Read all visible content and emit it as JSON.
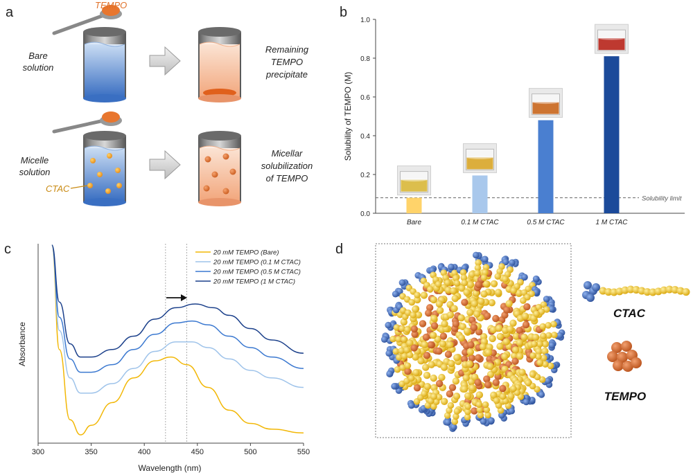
{
  "panel_letters": {
    "a": "a",
    "b": "b",
    "c": "c",
    "d": "d"
  },
  "panel_a": {
    "tempo_label": "TEMPO",
    "bare_label": "Bare\nsolution",
    "micelle_label": "Micelle\nsolution",
    "ctac_label": "CTAC",
    "result_top": "Remaining\nTEMPO\nprecipitate",
    "result_bottom": "Micellar\nsolubilization\nof TEMPO"
  },
  "panel_d": {
    "ctac_label": "CTAC",
    "tempo_label": "TEMPO"
  },
  "colors": {
    "bare_bar": "#ffd36a",
    "bar_01": "#a9c8ec",
    "bar_05": "#4a7fd0",
    "bar_1": "#1b4a9a",
    "tempo_orange": "#e0742c",
    "ctac_yellow": "#f2c21a",
    "ctac_blue": "#3d67b8"
  },
  "chart_data": [
    {
      "type": "bar",
      "categories": [
        "Bare",
        "0.1 M CTAC",
        "0.5 M CTAC",
        "1 M CTAC"
      ],
      "values": [
        0.08,
        0.195,
        0.48,
        0.81
      ],
      "xlabel": "",
      "ylabel": "Solubility of TEMPO (M)",
      "ylim": [
        0.0,
        1.0
      ],
      "yticks": [
        "0.0",
        "0.2",
        "0.4",
        "0.6",
        "0.8",
        "1.0"
      ],
      "reference_line": {
        "value": 0.08,
        "label": "Solubility limit",
        "style": "dashed"
      },
      "grid": false
    },
    {
      "type": "line",
      "xlabel": "Wavelength (nm)",
      "ylabel": "Absorbance",
      "xlim": [
        300,
        550
      ],
      "xticks": [
        "300",
        "350",
        "400",
        "450",
        "500",
        "550"
      ],
      "legend_position": "top-right",
      "reference_lines_x": [
        420,
        440
      ],
      "annotation": "arrow pointing to longer wavelength",
      "series": [
        {
          "name": "20 mM TEMPO (Bare)",
          "color": "#f2b705",
          "x": [
            313,
            320,
            330,
            340,
            350,
            370,
            390,
            410,
            425,
            440,
            460,
            480,
            500,
            520,
            550
          ],
          "y": [
            1.0,
            0.45,
            0.08,
            0.0,
            0.05,
            0.17,
            0.3,
            0.39,
            0.41,
            0.37,
            0.25,
            0.13,
            0.06,
            0.03,
            0.01
          ]
        },
        {
          "name": "20 mM TEMPO (0.1 M CTAC)",
          "color": "#9ec3ea",
          "x": [
            313,
            320,
            330,
            340,
            350,
            370,
            390,
            410,
            430,
            445,
            460,
            480,
            500,
            520,
            550
          ],
          "y": [
            1.0,
            0.55,
            0.3,
            0.22,
            0.22,
            0.27,
            0.35,
            0.44,
            0.49,
            0.49,
            0.46,
            0.4,
            0.34,
            0.3,
            0.25
          ]
        },
        {
          "name": "20 mM TEMPO (0.5 M CTAC)",
          "color": "#3a78d0",
          "x": [
            313,
            320,
            330,
            340,
            350,
            370,
            390,
            410,
            430,
            445,
            460,
            480,
            500,
            520,
            550
          ],
          "y": [
            1.0,
            0.62,
            0.4,
            0.33,
            0.33,
            0.37,
            0.45,
            0.53,
            0.59,
            0.6,
            0.58,
            0.52,
            0.46,
            0.41,
            0.35
          ]
        },
        {
          "name": "20 mM TEMPO (1 M CTAC)",
          "color": "#1a3f8a",
          "x": [
            313,
            320,
            330,
            340,
            350,
            370,
            390,
            410,
            430,
            448,
            465,
            480,
            500,
            520,
            550
          ],
          "y": [
            1.0,
            0.7,
            0.48,
            0.41,
            0.41,
            0.45,
            0.52,
            0.61,
            0.67,
            0.69,
            0.67,
            0.63,
            0.56,
            0.5,
            0.43
          ]
        }
      ]
    }
  ]
}
